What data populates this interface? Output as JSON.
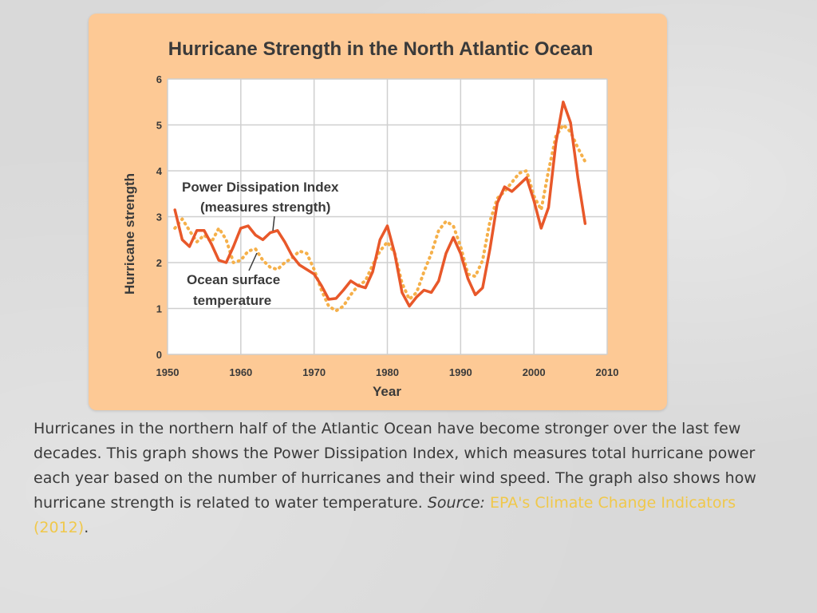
{
  "chart_data": {
    "type": "line",
    "title": "Hurricane Strength in the North Atlantic Ocean",
    "xlabel": "Year",
    "ylabel": "Hurricane strength",
    "xlim": [
      1950,
      2010
    ],
    "ylim": [
      0,
      6
    ],
    "x_ticks": [
      "1950",
      "1960",
      "1970",
      "1980",
      "1990",
      "2000",
      "2010"
    ],
    "y_ticks": [
      "0",
      "1",
      "2",
      "3",
      "4",
      "5",
      "6"
    ],
    "grid": true,
    "annotations": [
      {
        "lines": [
          "Power Dissipation Index",
          "(measures strength)"
        ],
        "points_to_series": 0
      },
      {
        "lines": [
          "Ocean surface",
          "temperature"
        ],
        "points_to_series": 1
      }
    ],
    "series": [
      {
        "name": "Power Dissipation Index (measures strength)",
        "style": "solid",
        "color": "#e8582a",
        "x": [
          1951,
          1952,
          1953,
          1954,
          1955,
          1956,
          1957,
          1958,
          1959,
          1960,
          1961,
          1962,
          1963,
          1964,
          1965,
          1966,
          1967,
          1968,
          1969,
          1970,
          1971,
          1972,
          1973,
          1974,
          1975,
          1976,
          1977,
          1978,
          1979,
          1980,
          1981,
          1982,
          1983,
          1984,
          1985,
          1986,
          1987,
          1988,
          1989,
          1990,
          1991,
          1992,
          1993,
          1994,
          1995,
          1996,
          1997,
          1998,
          1999,
          2000,
          2001,
          2002,
          2003,
          2004,
          2005,
          2006,
          2007
        ],
        "y": [
          3.15,
          2.5,
          2.35,
          2.7,
          2.7,
          2.4,
          2.05,
          2.0,
          2.35,
          2.75,
          2.8,
          2.6,
          2.5,
          2.65,
          2.7,
          2.45,
          2.15,
          1.95,
          1.85,
          1.75,
          1.5,
          1.2,
          1.22,
          1.4,
          1.6,
          1.5,
          1.45,
          1.8,
          2.5,
          2.8,
          2.2,
          1.35,
          1.05,
          1.25,
          1.4,
          1.35,
          1.6,
          2.2,
          2.55,
          2.2,
          1.65,
          1.3,
          1.45,
          2.3,
          3.3,
          3.65,
          3.55,
          3.7,
          3.85,
          3.35,
          2.75,
          3.2,
          4.6,
          5.5,
          5.05,
          3.85,
          2.85
        ]
      },
      {
        "name": "Ocean surface temperature",
        "style": "dotted",
        "color": "#f5b04a",
        "x": [
          1951,
          1952,
          1953,
          1954,
          1955,
          1956,
          1957,
          1958,
          1959,
          1960,
          1961,
          1962,
          1963,
          1964,
          1965,
          1966,
          1967,
          1968,
          1969,
          1970,
          1971,
          1972,
          1973,
          1974,
          1975,
          1976,
          1977,
          1978,
          1979,
          1980,
          1981,
          1982,
          1983,
          1984,
          1985,
          1986,
          1987,
          1988,
          1989,
          1990,
          1991,
          1992,
          1993,
          1994,
          1995,
          1996,
          1997,
          1998,
          1999,
          2000,
          2001,
          2002,
          2003,
          2004,
          2005,
          2006,
          2007
        ],
        "y": [
          2.75,
          2.95,
          2.7,
          2.45,
          2.6,
          2.45,
          2.75,
          2.5,
          2.0,
          2.05,
          2.25,
          2.3,
          2.05,
          1.9,
          1.85,
          2.0,
          2.1,
          2.25,
          2.2,
          1.85,
          1.4,
          1.05,
          0.95,
          1.05,
          1.3,
          1.5,
          1.6,
          1.95,
          2.25,
          2.45,
          2.2,
          1.55,
          1.2,
          1.35,
          1.8,
          2.2,
          2.7,
          2.9,
          2.8,
          2.35,
          1.75,
          1.7,
          2.05,
          2.9,
          3.4,
          3.55,
          3.75,
          3.95,
          4.0,
          3.45,
          3.15,
          4.0,
          4.75,
          5.0,
          4.85,
          4.5,
          4.2
        ]
      }
    ]
  },
  "caption": {
    "text": "Hurricanes in the northern half of the Atlantic Ocean have become stronger over the last few decades. This graph shows the Power Dissipation Index, which measures total hurricane power each year based on the number of hurricanes and their wind speed. The graph also shows how hurricane strength is related to water temperature. ",
    "source_label": "Source:",
    "source_link": "EPA's Climate Change Indicators (2012)",
    "end": "."
  },
  "colors": {
    "card_background": "#fdc995",
    "plot_background": "#ffffff",
    "pdi_line": "#e8582a",
    "temperature_line": "#f5b04a",
    "source_link": "#f0c84a"
  }
}
